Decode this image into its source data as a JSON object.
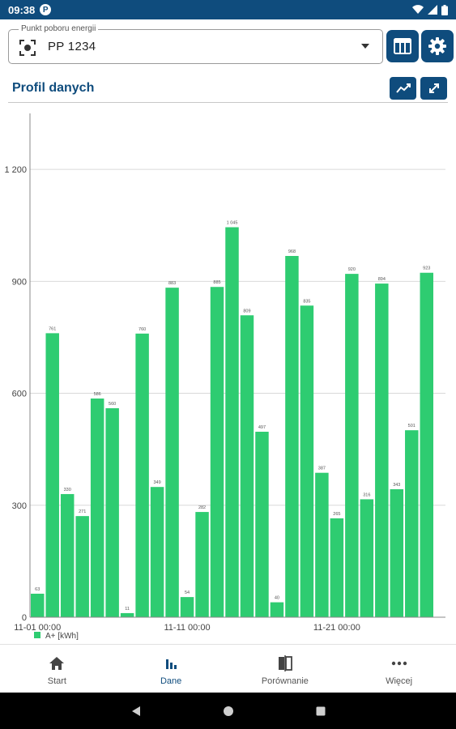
{
  "status_bar": {
    "time": "09:38",
    "app_badge": "P"
  },
  "pp_select": {
    "legend": "Punkt poboru energii",
    "value": "PP 1234"
  },
  "section": {
    "title": "Profil danych"
  },
  "nav": {
    "items": [
      {
        "label": "Start",
        "icon": "home-icon"
      },
      {
        "label": "Dane",
        "icon": "bar-chart-icon"
      },
      {
        "label": "Porównanie",
        "icon": "compare-icon"
      },
      {
        "label": "Więcej",
        "icon": "more-icon"
      }
    ],
    "active_index": 1
  },
  "colors": {
    "primary": "#0f4c7d",
    "bar": "#2ecc71",
    "grid": "#d9d9d9"
  },
  "chart_data": {
    "type": "bar",
    "ylim": [
      0,
      1350
    ],
    "yticks": [
      0,
      300,
      600,
      900,
      1200
    ],
    "ytick_labels": [
      "0",
      "300",
      "600",
      "900",
      "1 200"
    ],
    "x_labels": [
      {
        "index": 0,
        "text": "11-01 00:00"
      },
      {
        "index": 10,
        "text": "11-11 00:00"
      },
      {
        "index": 20,
        "text": "11-21 00:00"
      }
    ],
    "legend": "A+ [kWh]",
    "legend_position": "bottom-left",
    "values": [
      63,
      761,
      330,
      271,
      586,
      560,
      11,
      760,
      349,
      883,
      54,
      282,
      885,
      1045,
      809,
      497,
      40,
      968,
      835,
      387,
      265,
      920,
      316,
      894,
      343,
      501,
      923
    ],
    "value_labels": [
      "63",
      "761",
      "330",
      "271",
      "586",
      "560",
      "11",
      "760",
      "349",
      "883",
      "54",
      "282",
      "885",
      "1 045",
      "809",
      "497",
      "40",
      "968",
      "835",
      "387",
      "265",
      "920",
      "316",
      "894",
      "343",
      "501",
      "923"
    ]
  }
}
